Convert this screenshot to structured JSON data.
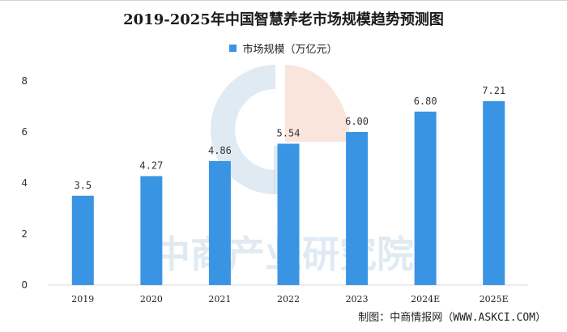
{
  "title": "2019-2025年中国智慧养老市场规模趋势预测图",
  "credit": "制图：中商情报网（WWW.ASKCI.COM）",
  "watermark_text": "中商产业研究院",
  "colors": {
    "bar": "#3a94e4",
    "grid": "#d9d9d9",
    "watermark_blue": "#c5d9ea",
    "watermark_orange": "#f6d3c4"
  },
  "chart_data": {
    "type": "bar",
    "title": "2019-2025年中国智慧养老市场规模趋势预测图",
    "categories": [
      "2019",
      "2020",
      "2021",
      "2022",
      "2023",
      "2024E",
      "2025E"
    ],
    "series": [
      {
        "name": "市场规模（万亿元）",
        "values": [
          3.5,
          4.27,
          4.86,
          5.54,
          6.0,
          6.8,
          7.21
        ]
      }
    ],
    "data_labels": [
      "3.5",
      "4.27",
      "4.86",
      "5.54",
      "6.00",
      "6.80",
      "7.21"
    ],
    "y_ticks": [
      "0",
      "2",
      "4",
      "6",
      "8"
    ],
    "ylim": [
      0,
      8
    ],
    "grid": false,
    "legend_position": "top-center"
  }
}
